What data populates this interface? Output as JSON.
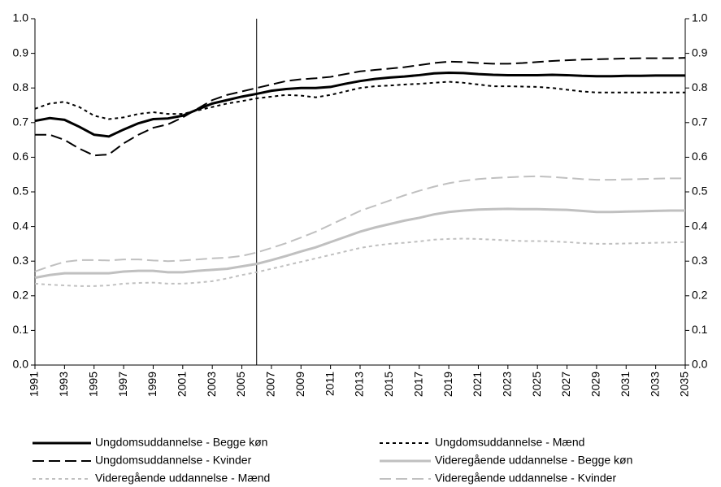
{
  "chart_data": {
    "type": "line",
    "x": [
      1991,
      1992,
      1993,
      1994,
      1995,
      1996,
      1997,
      1998,
      1999,
      2000,
      2001,
      2002,
      2003,
      2004,
      2005,
      2006,
      2007,
      2008,
      2009,
      2010,
      2011,
      2012,
      2013,
      2014,
      2015,
      2016,
      2017,
      2018,
      2019,
      2020,
      2021,
      2022,
      2023,
      2024,
      2025,
      2026,
      2027,
      2028,
      2029,
      2030,
      2031,
      2032,
      2033,
      2034,
      2035
    ],
    "xlim": [
      1991,
      2035
    ],
    "xticks": [
      1991,
      1993,
      1995,
      1997,
      1999,
      2001,
      2003,
      2005,
      2007,
      2009,
      2011,
      2013,
      2015,
      2017,
      2019,
      2021,
      2023,
      2025,
      2027,
      2029,
      2031,
      2033,
      2035
    ],
    "ylim": [
      0,
      1
    ],
    "yticks": [
      {
        "value": 0,
        "label": "0.0"
      },
      0.1,
      0.2,
      0.3,
      0.4,
      0.5,
      0.6,
      0.7,
      0.8,
      0.9,
      {
        "value": 1,
        "label": "1.0"
      }
    ],
    "y2lim": [
      0,
      1
    ],
    "y2ticks": [
      {
        "value": 0,
        "label": "0.0"
      },
      0.1,
      0.2,
      0.3,
      0.4,
      0.5,
      0.6,
      0.7,
      0.8,
      0.9,
      {
        "value": 1,
        "label": "1.0"
      }
    ],
    "vline": 2006,
    "grid": false,
    "legend": "bottom",
    "series": [
      {
        "name": "Ungdomsuddannelse - Begge køn",
        "color": "#000000",
        "dash": "solid",
        "width": 3,
        "values": [
          0.705,
          0.713,
          0.708,
          0.688,
          0.665,
          0.66,
          0.68,
          0.698,
          0.71,
          0.712,
          0.72,
          0.738,
          0.755,
          0.765,
          0.775,
          0.783,
          0.792,
          0.797,
          0.8,
          0.8,
          0.803,
          0.812,
          0.82,
          0.826,
          0.83,
          0.833,
          0.837,
          0.842,
          0.844,
          0.843,
          0.84,
          0.838,
          0.837,
          0.837,
          0.837,
          0.838,
          0.837,
          0.835,
          0.834,
          0.834,
          0.835,
          0.835,
          0.836,
          0.836,
          0.836
        ]
      },
      {
        "name": "Ungdomsuddannelse - Mænd",
        "color": "#000000",
        "dash": "dotted",
        "width": 2,
        "values": [
          0.74,
          0.755,
          0.76,
          0.745,
          0.72,
          0.71,
          0.715,
          0.725,
          0.73,
          0.725,
          0.725,
          0.735,
          0.745,
          0.755,
          0.762,
          0.77,
          0.775,
          0.78,
          0.778,
          0.773,
          0.78,
          0.79,
          0.8,
          0.805,
          0.807,
          0.81,
          0.812,
          0.815,
          0.818,
          0.815,
          0.81,
          0.805,
          0.805,
          0.804,
          0.803,
          0.8,
          0.795,
          0.79,
          0.787,
          0.787,
          0.787,
          0.787,
          0.787,
          0.787,
          0.787
        ]
      },
      {
        "name": "Ungdomsuddannelse - Kvinder",
        "color": "#000000",
        "dash": "dashed",
        "width": 2,
        "values": [
          0.665,
          0.665,
          0.65,
          0.625,
          0.605,
          0.608,
          0.64,
          0.665,
          0.685,
          0.695,
          0.715,
          0.74,
          0.765,
          0.78,
          0.79,
          0.8,
          0.81,
          0.82,
          0.825,
          0.828,
          0.832,
          0.84,
          0.848,
          0.852,
          0.856,
          0.86,
          0.866,
          0.872,
          0.876,
          0.875,
          0.872,
          0.87,
          0.87,
          0.872,
          0.875,
          0.878,
          0.88,
          0.882,
          0.883,
          0.884,
          0.885,
          0.886,
          0.886,
          0.886,
          0.887
        ]
      },
      {
        "name": "Videregående uddannelse - Begge køn",
        "color": "#c0c0c0",
        "dash": "solid",
        "width": 3,
        "values": [
          0.252,
          0.26,
          0.265,
          0.265,
          0.265,
          0.265,
          0.27,
          0.272,
          0.272,
          0.268,
          0.268,
          0.272,
          0.275,
          0.278,
          0.285,
          0.292,
          0.303,
          0.315,
          0.328,
          0.34,
          0.355,
          0.37,
          0.385,
          0.397,
          0.407,
          0.417,
          0.425,
          0.435,
          0.442,
          0.446,
          0.449,
          0.45,
          0.451,
          0.45,
          0.45,
          0.449,
          0.448,
          0.445,
          0.442,
          0.442,
          0.443,
          0.444,
          0.445,
          0.446,
          0.446
        ]
      },
      {
        "name": "Videregående uddannelse - Mænd",
        "color": "#c0c0c0",
        "dash": "dotted",
        "width": 2,
        "values": [
          0.235,
          0.232,
          0.23,
          0.228,
          0.228,
          0.23,
          0.235,
          0.237,
          0.238,
          0.235,
          0.235,
          0.238,
          0.242,
          0.25,
          0.26,
          0.268,
          0.278,
          0.288,
          0.298,
          0.308,
          0.318,
          0.328,
          0.338,
          0.345,
          0.35,
          0.353,
          0.357,
          0.362,
          0.364,
          0.365,
          0.364,
          0.362,
          0.36,
          0.358,
          0.358,
          0.357,
          0.355,
          0.352,
          0.35,
          0.35,
          0.351,
          0.352,
          0.353,
          0.354,
          0.355
        ]
      },
      {
        "name": "Videregående uddannelse - Kvinder",
        "color": "#c0c0c0",
        "dash": "dashed",
        "width": 2,
        "values": [
          0.27,
          0.285,
          0.298,
          0.303,
          0.303,
          0.302,
          0.305,
          0.305,
          0.302,
          0.3,
          0.302,
          0.305,
          0.308,
          0.31,
          0.315,
          0.325,
          0.338,
          0.352,
          0.368,
          0.385,
          0.405,
          0.425,
          0.445,
          0.46,
          0.475,
          0.49,
          0.503,
          0.515,
          0.525,
          0.532,
          0.537,
          0.54,
          0.542,
          0.544,
          0.545,
          0.543,
          0.54,
          0.537,
          0.535,
          0.535,
          0.536,
          0.537,
          0.538,
          0.539,
          0.539
        ]
      }
    ]
  }
}
